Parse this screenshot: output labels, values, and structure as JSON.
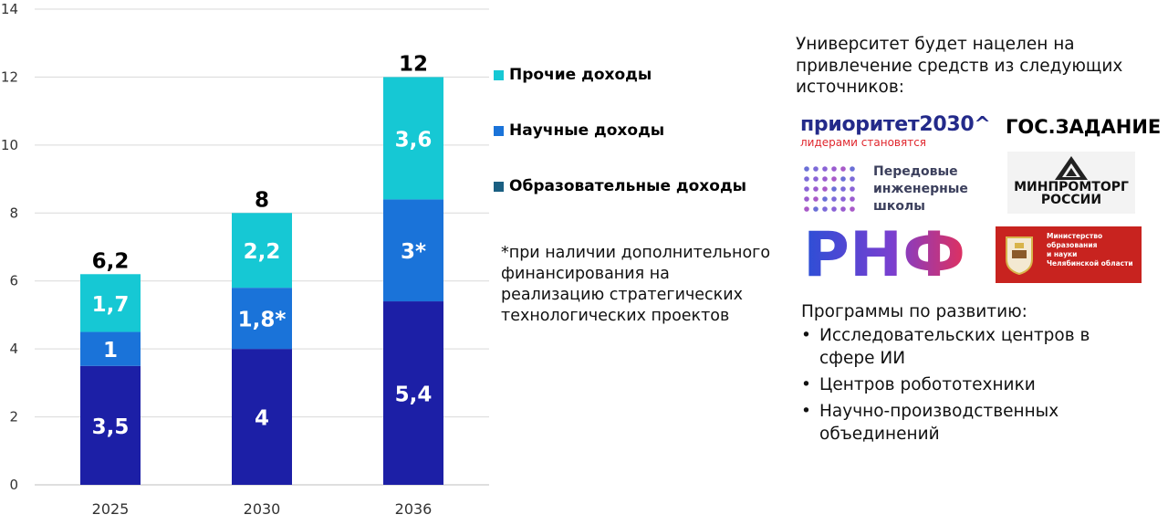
{
  "chart_data": {
    "type": "bar",
    "stacked": true,
    "categories": [
      "2025",
      "2030",
      "2036"
    ],
    "series": [
      {
        "name": "Образовательные доходы",
        "color": "#1c1fa6",
        "values": [
          3.5,
          4,
          5.4
        ],
        "labels": [
          "3,5",
          "4",
          "5,4"
        ]
      },
      {
        "name": "Научные доходы",
        "color": "#1a73d9",
        "values": [
          1,
          1.8,
          3
        ],
        "labels": [
          "1",
          "1,8*",
          "3*"
        ]
      },
      {
        "name": "Прочие доходы",
        "color": "#16c8d4",
        "values": [
          1.7,
          2.2,
          3.6
        ],
        "labels": [
          "1,7",
          "2,2",
          "3,6"
        ]
      }
    ],
    "totals": [
      "6,2",
      "8",
      "12"
    ],
    "yticks": [
      "0",
      "2",
      "4",
      "6",
      "8",
      "10",
      "12",
      "14"
    ],
    "ylim": [
      0,
      14
    ],
    "grid": true,
    "legend": {
      "position": "right",
      "items": [
        {
          "label": "Прочие доходы",
          "color": "#16c8d4"
        },
        {
          "label": "Научные доходы",
          "color": "#1a73d9"
        },
        {
          "label": "Образовательные доходы",
          "color": "#1a5f82"
        }
      ]
    }
  },
  "footnote": "*при наличии дополнительного финансирования на реализацию стратегических технологических проектов",
  "sources": {
    "intro": "Университет будет нацелен на привлечение средств из следующих источников:",
    "logos": {
      "priority": {
        "title": "приоритет2030^",
        "subtitle": "лидерами становятся"
      },
      "gos": "ГОС.ЗАДАНИЕ",
      "schools": {
        "line1": "Передовые",
        "line2": "инженерные",
        "line3": "школы"
      },
      "minprom": {
        "line1": "МИНПРОМТОРГ",
        "line2": "РОССИИ"
      },
      "rnf": "РНФ",
      "minobr": {
        "line1": "Министерство",
        "line2": "образования",
        "line3": "и науки",
        "line4": "Челябинской области"
      }
    },
    "programs_title": "Программы по развитию:",
    "programs": [
      "Исследовательских центров в сфере ИИ",
      "Центров робототехники",
      "Научно-производственных объединений"
    ]
  }
}
